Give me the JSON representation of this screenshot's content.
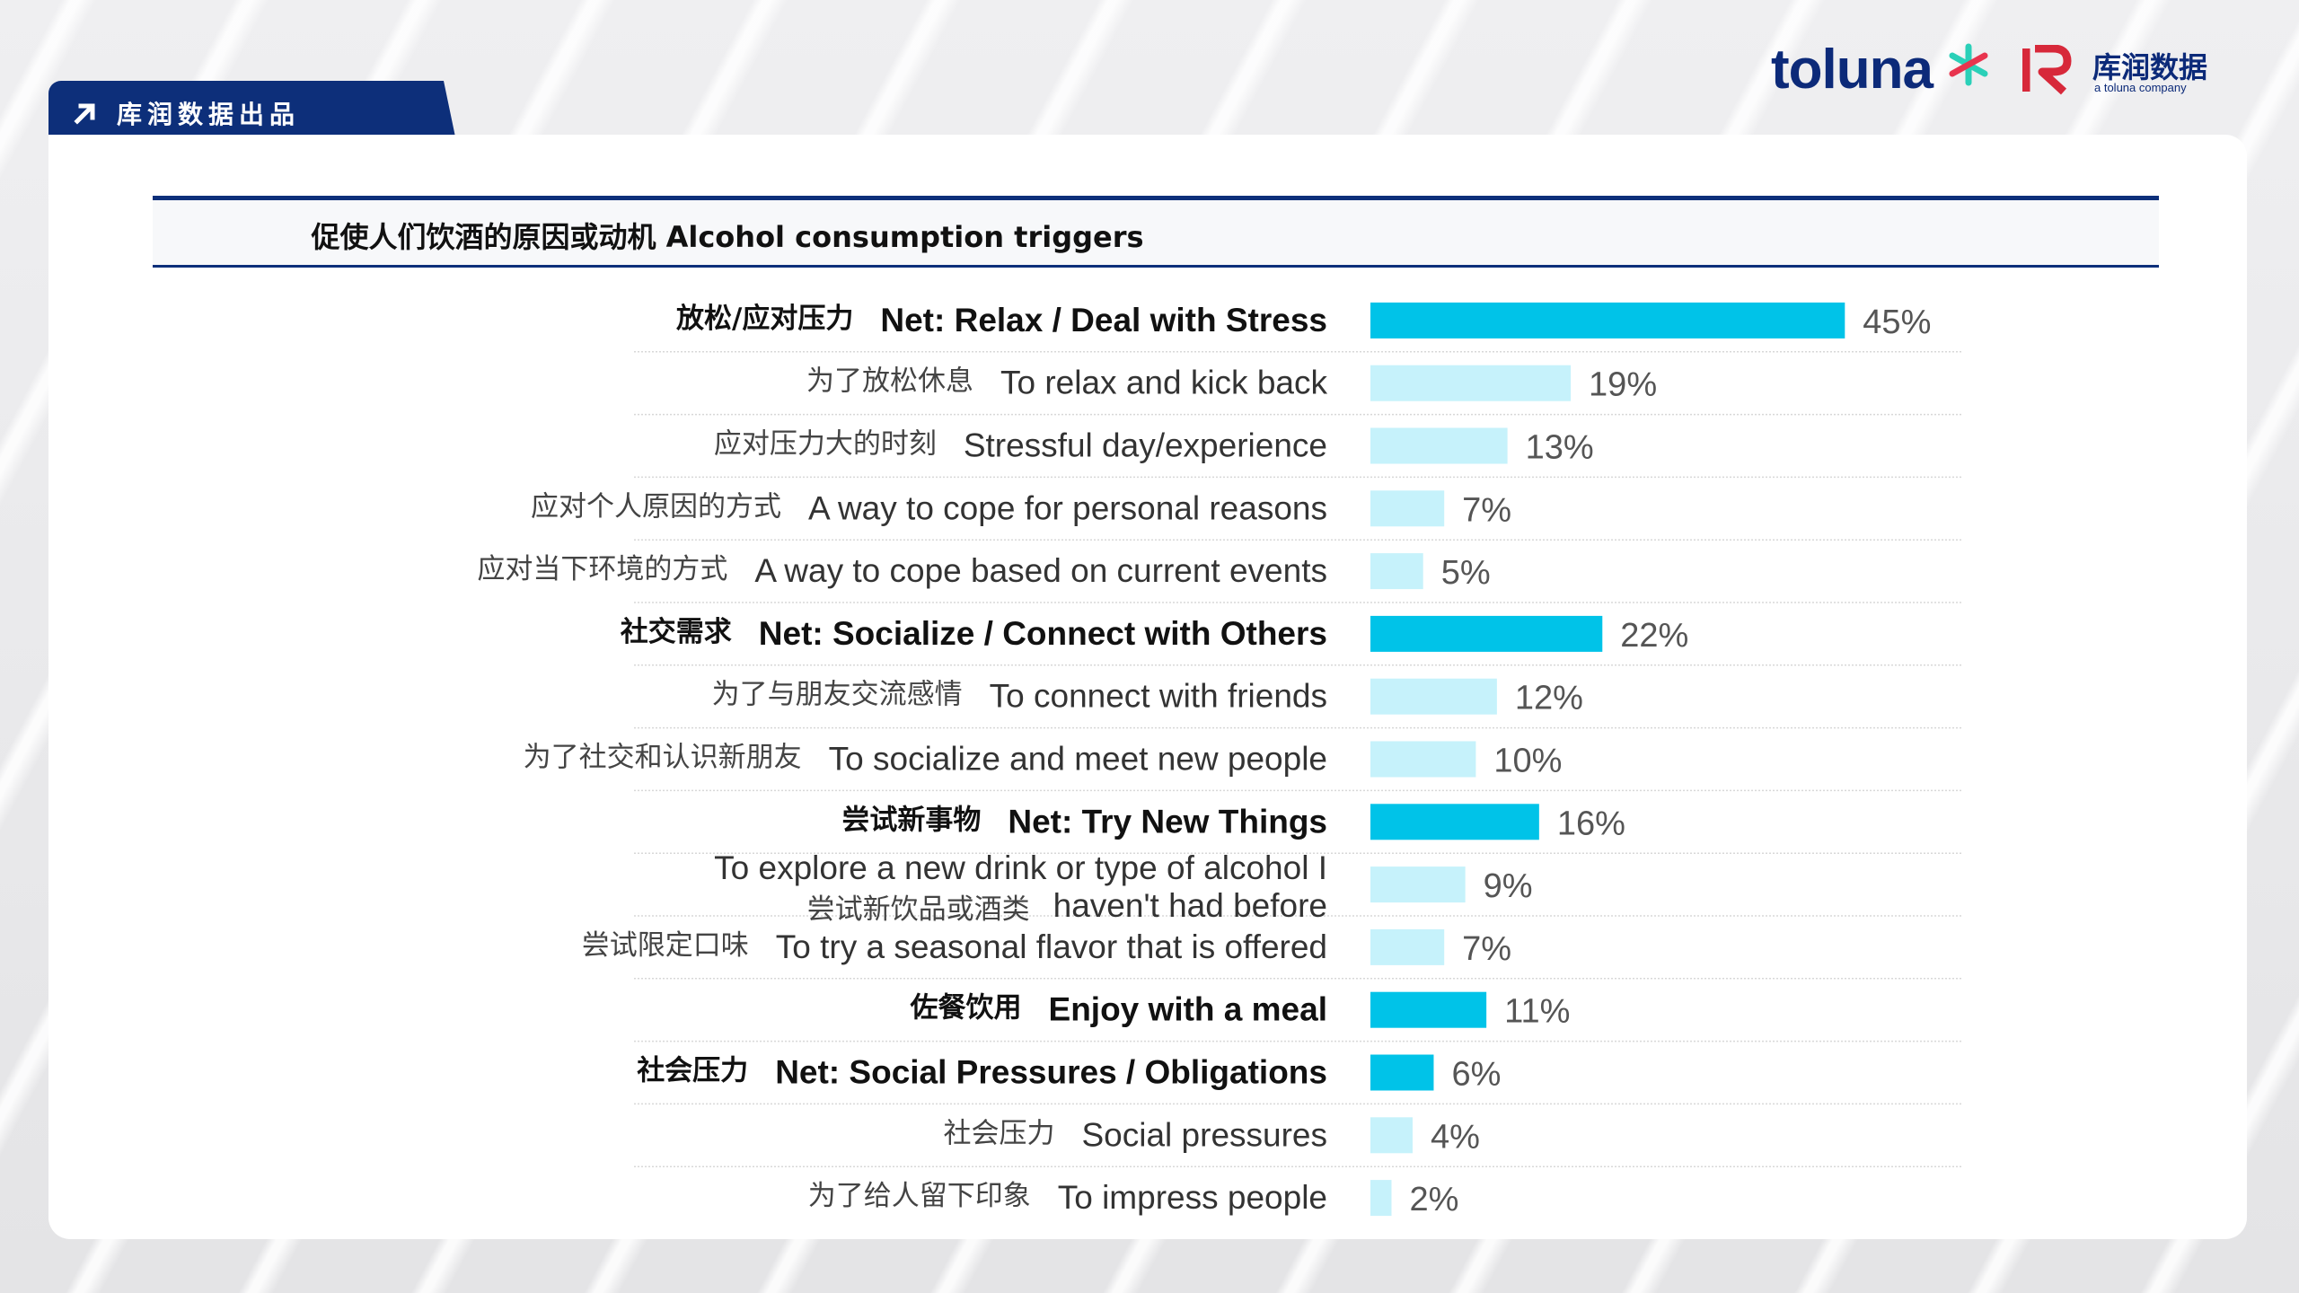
{
  "header": {
    "tab_label": "库润数据出品",
    "brand_toluna": "toluna",
    "brand_kr_name": "库润数据",
    "brand_kr_tagline": "a toluna company"
  },
  "colors": {
    "navy": "#0d2f7a",
    "net_bar": "#00c3e8",
    "sub_bar": "#c6f2fb",
    "star_teal": "#2ad0b8",
    "star_red": "#e8344e",
    "kr_red": "#d7283a"
  },
  "chart_data": {
    "type": "bar",
    "orientation": "horizontal",
    "title": "促使人们饮酒的原因或动机 Alcohol consumption triggers",
    "xlim": [
      0,
      100
    ],
    "value_suffix": "%",
    "categories": [
      {
        "cn": "放松/应对压力",
        "en": "Net: Relax / Deal with Stress",
        "value": 45,
        "level": "net"
      },
      {
        "cn": "为了放松休息",
        "en": "To relax and kick back",
        "value": 19,
        "level": "sub"
      },
      {
        "cn": "应对压力大的时刻",
        "en": "Stressful day/experience",
        "value": 13,
        "level": "sub"
      },
      {
        "cn": "应对个人原因的方式",
        "en": "A way to cope for personal reasons",
        "value": 7,
        "level": "sub"
      },
      {
        "cn": "应对当下环境的方式",
        "en": "A way to cope based on current events",
        "value": 5,
        "level": "sub"
      },
      {
        "cn": "社交需求",
        "en": "Net: Socialize / Connect with Others",
        "value": 22,
        "level": "net"
      },
      {
        "cn": "为了与朋友交流感情",
        "en": "To connect with friends",
        "value": 12,
        "level": "sub"
      },
      {
        "cn": "为了社交和认识新朋友",
        "en": "To socialize and meet new people",
        "value": 10,
        "level": "sub"
      },
      {
        "cn": "尝试新事物",
        "en": "Net: Try New Things",
        "value": 16,
        "level": "net"
      },
      {
        "cn": "尝试新饮品或酒类",
        "en": "To explore a new drink or type of alcohol I haven't had before",
        "en_lines": [
          "To explore a new drink or type of alcohol I",
          "haven't had before"
        ],
        "value": 9,
        "level": "sub"
      },
      {
        "cn": "尝试限定口味",
        "en": "To try a seasonal flavor that is offered",
        "value": 7,
        "level": "sub"
      },
      {
        "cn": "佐餐饮用",
        "en": "Enjoy with a meal",
        "value": 11,
        "level": "net"
      },
      {
        "cn": "社会压力",
        "en": "Net: Social Pressures / Obligations",
        "value": 6,
        "level": "net"
      },
      {
        "cn": "社会压力",
        "en": "Social pressures",
        "value": 4,
        "level": "sub"
      },
      {
        "cn": "为了给人留下印象",
        "en": "To impress people",
        "value": 2,
        "level": "sub"
      }
    ]
  }
}
